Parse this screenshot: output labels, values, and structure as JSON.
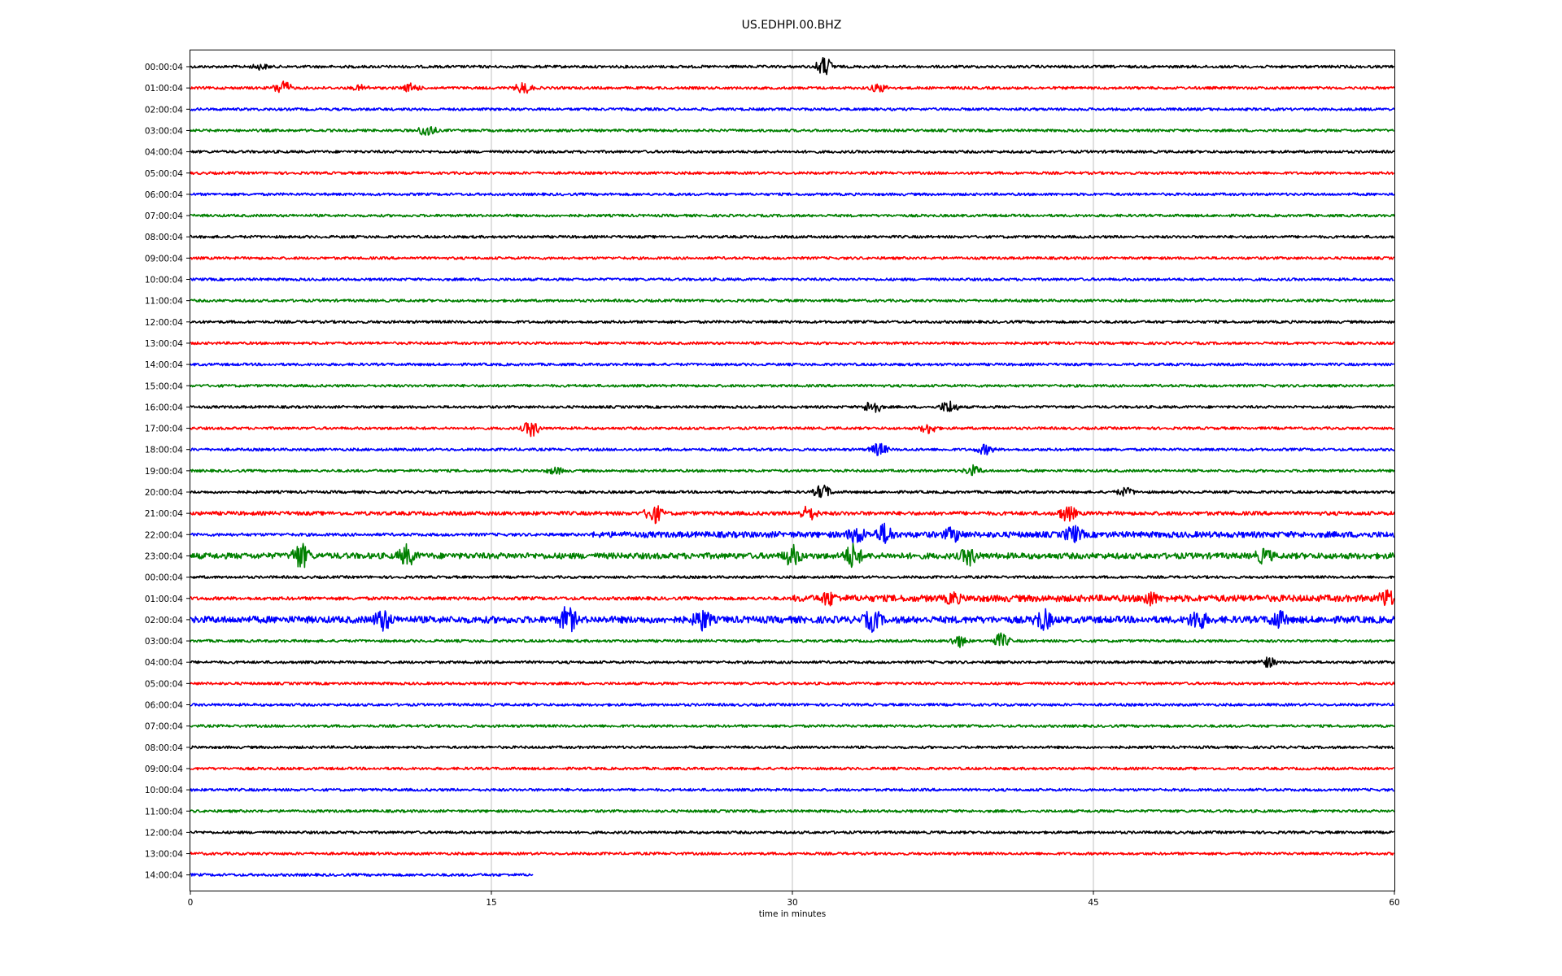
{
  "chart_data": {
    "type": "line",
    "title": "US.EDHPI.00.BHZ",
    "xlabel": "time in minutes",
    "ylabel": "",
    "xlim": [
      0,
      60
    ],
    "x_ticks": [
      0,
      15,
      30,
      45,
      60
    ],
    "x_tick_labels": [
      "0",
      "15",
      "30",
      "45",
      "60"
    ],
    "grid": "vertical at x ticks",
    "color_cycle": [
      "#000000",
      "#ff0000",
      "#0000ff",
      "#008000"
    ],
    "rows": [
      {
        "label": "00:00:04",
        "color": "#000000",
        "end_minute": 60,
        "activity": "quiet",
        "events": [
          {
            "t": 3.5,
            "a": 3
          },
          {
            "t": 31.6,
            "a": 12
          }
        ]
      },
      {
        "label": "01:00:04",
        "color": "#ff0000",
        "end_minute": 60,
        "activity": "quiet",
        "events": [
          {
            "t": 4.6,
            "a": 9
          },
          {
            "t": 8.5,
            "a": 3
          },
          {
            "t": 11.0,
            "a": 5
          },
          {
            "t": 16.6,
            "a": 7
          },
          {
            "t": 34.3,
            "a": 5
          }
        ]
      },
      {
        "label": "02:00:04",
        "color": "#0000ff",
        "end_minute": 60,
        "activity": "quiet",
        "events": []
      },
      {
        "label": "03:00:04",
        "color": "#008000",
        "end_minute": 60,
        "activity": "quiet",
        "events": [
          {
            "t": 11.8,
            "a": 8
          }
        ]
      },
      {
        "label": "04:00:04",
        "color": "#000000",
        "end_minute": 60,
        "activity": "quiet",
        "events": []
      },
      {
        "label": "05:00:04",
        "color": "#ff0000",
        "end_minute": 60,
        "activity": "quiet",
        "events": []
      },
      {
        "label": "06:00:04",
        "color": "#0000ff",
        "end_minute": 60,
        "activity": "quiet",
        "events": []
      },
      {
        "label": "07:00:04",
        "color": "#008000",
        "end_minute": 60,
        "activity": "quiet",
        "events": []
      },
      {
        "label": "08:00:04",
        "color": "#000000",
        "end_minute": 60,
        "activity": "quiet",
        "events": []
      },
      {
        "label": "09:00:04",
        "color": "#ff0000",
        "end_minute": 60,
        "activity": "quiet",
        "events": []
      },
      {
        "label": "10:00:04",
        "color": "#0000ff",
        "end_minute": 60,
        "activity": "quiet",
        "events": []
      },
      {
        "label": "11:00:04",
        "color": "#008000",
        "end_minute": 60,
        "activity": "quiet",
        "events": []
      },
      {
        "label": "12:00:04",
        "color": "#000000",
        "end_minute": 60,
        "activity": "quiet",
        "events": []
      },
      {
        "label": "13:00:04",
        "color": "#ff0000",
        "end_minute": 60,
        "activity": "quiet",
        "events": []
      },
      {
        "label": "14:00:04",
        "color": "#0000ff",
        "end_minute": 60,
        "activity": "quiet",
        "events": []
      },
      {
        "label": "15:00:04",
        "color": "#008000",
        "end_minute": 60,
        "activity": "quiet",
        "events": []
      },
      {
        "label": "16:00:04",
        "color": "#000000",
        "end_minute": 60,
        "activity": "quiet",
        "events": [
          {
            "t": 34.0,
            "a": 9
          },
          {
            "t": 37.8,
            "a": 8
          }
        ]
      },
      {
        "label": "17:00:04",
        "color": "#ff0000",
        "end_minute": 60,
        "activity": "quiet",
        "events": [
          {
            "t": 17.0,
            "a": 10
          },
          {
            "t": 36.8,
            "a": 6
          }
        ]
      },
      {
        "label": "18:00:04",
        "color": "#0000ff",
        "end_minute": 60,
        "activity": "quiet",
        "events": [
          {
            "t": 34.3,
            "a": 8
          },
          {
            "t": 39.6,
            "a": 6
          }
        ]
      },
      {
        "label": "19:00:04",
        "color": "#008000",
        "end_minute": 60,
        "activity": "quiet",
        "events": [
          {
            "t": 18.2,
            "a": 4
          },
          {
            "t": 39.0,
            "a": 6
          }
        ]
      },
      {
        "label": "20:00:04",
        "color": "#000000",
        "end_minute": 60,
        "activity": "quiet",
        "events": [
          {
            "t": 31.5,
            "a": 9
          },
          {
            "t": 46.6,
            "a": 5
          }
        ]
      },
      {
        "label": "21:00:04",
        "color": "#ff0000",
        "end_minute": 60,
        "activity": "low",
        "events": [
          {
            "t": 23.1,
            "a": 12
          },
          {
            "t": 30.8,
            "a": 9
          },
          {
            "t": 43.7,
            "a": 10
          }
        ]
      },
      {
        "label": "22:00:04",
        "color": "#0000ff",
        "end_minute": 60,
        "activity": "high",
        "events": [
          {
            "t": 33.2,
            "a": 10
          },
          {
            "t": 34.6,
            "a": 12
          },
          {
            "t": 38.0,
            "a": 8
          },
          {
            "t": 44.0,
            "a": 10
          }
        ]
      },
      {
        "label": "23:00:04",
        "color": "#008000",
        "end_minute": 60,
        "activity": "high",
        "events": [
          {
            "t": 5.5,
            "a": 16
          },
          {
            "t": 10.8,
            "a": 12
          },
          {
            "t": 30.0,
            "a": 12
          },
          {
            "t": 33.0,
            "a": 14
          },
          {
            "t": 38.8,
            "a": 10
          },
          {
            "t": 53.5,
            "a": 8
          }
        ]
      },
      {
        "label": "00:00:04",
        "color": "#000000",
        "end_minute": 60,
        "activity": "quiet",
        "events": []
      },
      {
        "label": "01:00:04",
        "color": "#ff0000",
        "end_minute": 60,
        "activity": "high_late",
        "events": [
          {
            "t": 31.8,
            "a": 10
          },
          {
            "t": 38.0,
            "a": 9
          },
          {
            "t": 47.8,
            "a": 10
          },
          {
            "t": 59.6,
            "a": 12
          }
        ]
      },
      {
        "label": "02:00:04",
        "color": "#0000ff",
        "end_minute": 60,
        "activity": "very_high",
        "events": [
          {
            "t": 9.6,
            "a": 12
          },
          {
            "t": 18.8,
            "a": 16
          },
          {
            "t": 25.5,
            "a": 12
          },
          {
            "t": 34.0,
            "a": 12
          },
          {
            "t": 42.5,
            "a": 12
          },
          {
            "t": 50.2,
            "a": 12
          },
          {
            "t": 54.2,
            "a": 10
          }
        ]
      },
      {
        "label": "03:00:04",
        "color": "#008000",
        "end_minute": 60,
        "activity": "quiet",
        "events": [
          {
            "t": 38.3,
            "a": 7
          },
          {
            "t": 40.4,
            "a": 9
          }
        ]
      },
      {
        "label": "04:00:04",
        "color": "#000000",
        "end_minute": 60,
        "activity": "quiet",
        "events": [
          {
            "t": 53.7,
            "a": 6
          }
        ]
      },
      {
        "label": "05:00:04",
        "color": "#ff0000",
        "end_minute": 60,
        "activity": "quiet",
        "events": []
      },
      {
        "label": "06:00:04",
        "color": "#0000ff",
        "end_minute": 60,
        "activity": "quiet",
        "events": []
      },
      {
        "label": "07:00:04",
        "color": "#008000",
        "end_minute": 60,
        "activity": "quiet",
        "events": []
      },
      {
        "label": "08:00:04",
        "color": "#000000",
        "end_minute": 60,
        "activity": "quiet",
        "events": []
      },
      {
        "label": "09:00:04",
        "color": "#ff0000",
        "end_minute": 60,
        "activity": "quiet",
        "events": []
      },
      {
        "label": "10:00:04",
        "color": "#0000ff",
        "end_minute": 60,
        "activity": "quiet",
        "events": []
      },
      {
        "label": "11:00:04",
        "color": "#008000",
        "end_minute": 60,
        "activity": "quiet",
        "events": []
      },
      {
        "label": "12:00:04",
        "color": "#000000",
        "end_minute": 60,
        "activity": "quiet",
        "events": []
      },
      {
        "label": "13:00:04",
        "color": "#ff0000",
        "end_minute": 60,
        "activity": "quiet",
        "events": []
      },
      {
        "label": "14:00:04",
        "color": "#0000ff",
        "end_minute": 17.1,
        "activity": "quiet",
        "events": []
      }
    ]
  }
}
